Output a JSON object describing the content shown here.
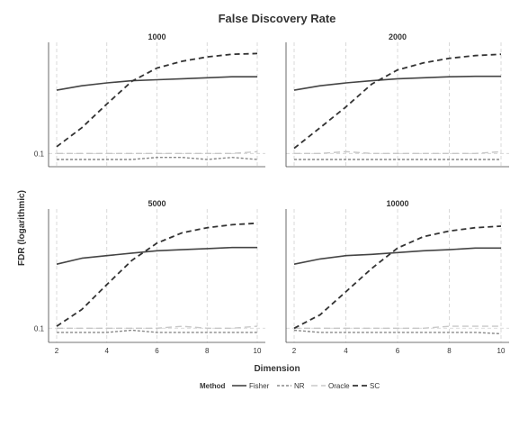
{
  "chart_data": {
    "type": "line",
    "title": "False Discovery Rate",
    "xlabel": "Dimension",
    "ylabel": "FDR (logarithmic)",
    "y_scale": "log",
    "y_tick_labels": [
      "0.1"
    ],
    "y_tick_values": [
      0.1
    ],
    "x_ticks": [
      2,
      4,
      6,
      8,
      10
    ],
    "xlim": [
      2,
      10
    ],
    "ylim": [
      0.07,
      2.0
    ],
    "grid": "vertical dashed at x ticks, horizontal dashed at y ticks",
    "legend": {
      "position": "bottom",
      "title": "Method",
      "entries": [
        {
          "name": "Fisher",
          "color": "#444444",
          "dash": "solid",
          "width": 1.6
        },
        {
          "name": "NR",
          "color": "#8a8a8a",
          "dash": "3,2",
          "width": 1.4
        },
        {
          "name": "Oracle",
          "color": "#c8c8c8",
          "dash": "7,4",
          "width": 1.4
        },
        {
          "name": "SC",
          "color": "#333333",
          "dash": "6,4",
          "width": 1.8
        }
      ]
    },
    "x": [
      2,
      3,
      4,
      5,
      6,
      7,
      8,
      9,
      10
    ],
    "panels": [
      {
        "title": "1000",
        "series": [
          {
            "name": "Fisher",
            "values": [
              0.55,
              0.62,
              0.67,
              0.71,
              0.73,
              0.75,
              0.77,
              0.79,
              0.79
            ]
          },
          {
            "name": "NR",
            "values": [
              0.085,
              0.085,
              0.085,
              0.085,
              0.09,
              0.09,
              0.085,
              0.09,
              0.085
            ]
          },
          {
            "name": "Oracle",
            "values": [
              0.1,
              0.1,
              0.1,
              0.1,
              0.1,
              0.1,
              0.1,
              0.1,
              0.105
            ]
          },
          {
            "name": "SC",
            "values": [
              0.12,
              0.2,
              0.38,
              0.7,
              1.0,
              1.2,
              1.35,
              1.45,
              1.48
            ]
          }
        ]
      },
      {
        "title": "2000",
        "series": [
          {
            "name": "Fisher",
            "values": [
              0.55,
              0.62,
              0.67,
              0.71,
              0.75,
              0.77,
              0.79,
              0.8,
              0.8
            ]
          },
          {
            "name": "NR",
            "values": [
              0.085,
              0.085,
              0.085,
              0.085,
              0.085,
              0.085,
              0.085,
              0.085,
              0.085
            ]
          },
          {
            "name": "Oracle",
            "values": [
              0.1,
              0.1,
              0.105,
              0.1,
              0.1,
              0.1,
              0.1,
              0.1,
              0.105
            ]
          },
          {
            "name": "SC",
            "values": [
              0.115,
              0.2,
              0.35,
              0.65,
              0.95,
              1.15,
              1.3,
              1.4,
              1.45
            ]
          }
        ]
      },
      {
        "title": "5000",
        "series": [
          {
            "name": "Fisher",
            "values": [
              0.5,
              0.58,
              0.62,
              0.66,
              0.7,
              0.72,
              0.74,
              0.76,
              0.76
            ]
          },
          {
            "name": "NR",
            "values": [
              0.09,
              0.09,
              0.09,
              0.095,
              0.09,
              0.09,
              0.09,
              0.09,
              0.09
            ]
          },
          {
            "name": "Oracle",
            "values": [
              0.1,
              0.1,
              0.1,
              0.1,
              0.1,
              0.105,
              0.1,
              0.1,
              0.105
            ]
          },
          {
            "name": "SC",
            "values": [
              0.105,
              0.16,
              0.3,
              0.55,
              0.85,
              1.1,
              1.25,
              1.35,
              1.4
            ]
          }
        ]
      },
      {
        "title": "10000",
        "series": [
          {
            "name": "Fisher",
            "values": [
              0.5,
              0.57,
              0.62,
              0.64,
              0.67,
              0.7,
              0.72,
              0.75,
              0.75
            ]
          },
          {
            "name": "NR",
            "values": [
              0.095,
              0.09,
              0.09,
              0.09,
              0.09,
              0.09,
              0.09,
              0.09,
              0.087
            ]
          },
          {
            "name": "Oracle",
            "values": [
              0.1,
              0.1,
              0.1,
              0.1,
              0.1,
              0.1,
              0.105,
              0.105,
              0.105
            ]
          },
          {
            "name": "SC",
            "values": [
              0.1,
              0.14,
              0.25,
              0.45,
              0.75,
              1.0,
              1.15,
              1.25,
              1.3
            ]
          }
        ]
      }
    ]
  }
}
